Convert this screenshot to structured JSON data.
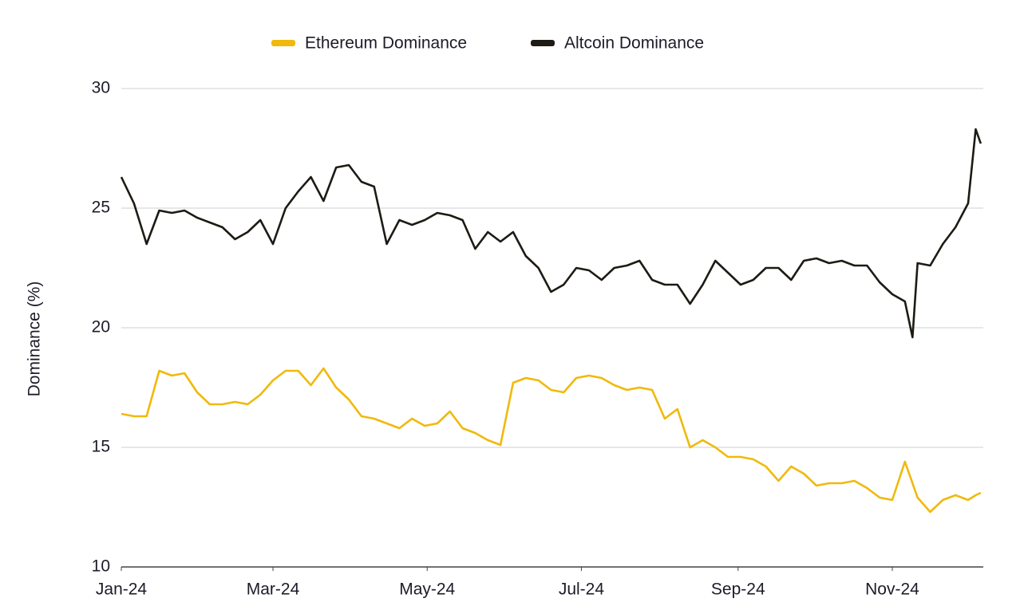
{
  "chart_data": {
    "type": "line",
    "y_label": "Dominance (%)",
    "x": [
      0,
      5,
      10,
      15,
      20,
      25,
      30,
      35,
      40,
      45,
      50,
      55,
      60,
      65,
      70,
      75,
      80,
      85,
      90,
      95,
      100,
      105,
      110,
      115,
      120,
      125,
      130,
      135,
      140,
      145,
      150,
      155,
      160,
      165,
      170,
      175,
      180,
      185,
      190,
      195,
      200,
      205,
      210,
      215,
      220,
      225,
      230,
      235,
      240,
      245,
      250,
      255,
      260,
      265,
      270,
      275,
      280,
      285,
      290,
      295,
      300,
      305,
      310,
      313,
      315,
      320,
      325,
      330,
      335,
      338,
      340
    ],
    "series": [
      {
        "name": "Ethereum Dominance",
        "color": "#f0b90b",
        "values": [
          16.4,
          16.3,
          16.3,
          18.2,
          18.0,
          18.1,
          17.3,
          16.8,
          16.8,
          16.9,
          16.8,
          17.2,
          17.8,
          18.2,
          18.2,
          17.6,
          18.3,
          17.5,
          17.0,
          16.3,
          16.2,
          16.0,
          15.8,
          16.2,
          15.9,
          16.0,
          16.5,
          15.8,
          15.6,
          15.3,
          15.1,
          17.7,
          17.9,
          17.8,
          17.4,
          17.3,
          17.9,
          18.0,
          17.9,
          17.6,
          17.4,
          17.5,
          17.4,
          16.2,
          16.6,
          15.0,
          15.3,
          15.0,
          14.6,
          14.6,
          14.5,
          14.2,
          13.6,
          14.2,
          13.9,
          13.4,
          13.5,
          13.5,
          13.6,
          13.3,
          12.9,
          12.8,
          14.4,
          13.5,
          12.9,
          12.3,
          12.8,
          13.0,
          12.8,
          13.0,
          13.1
        ]
      },
      {
        "name": "Altcoin Dominance",
        "color": "#1e1a14",
        "values": [
          26.3,
          25.2,
          23.5,
          24.9,
          24.8,
          24.9,
          24.6,
          24.4,
          24.2,
          23.7,
          24.0,
          24.5,
          23.5,
          25.0,
          25.7,
          26.3,
          25.3,
          26.7,
          26.8,
          26.1,
          25.9,
          23.5,
          24.5,
          24.3,
          24.5,
          24.8,
          24.7,
          24.5,
          23.3,
          24.0,
          23.6,
          24.0,
          23.0,
          22.5,
          21.5,
          21.8,
          22.5,
          22.4,
          22.0,
          22.5,
          22.6,
          22.8,
          22.0,
          21.8,
          21.8,
          21.0,
          21.8,
          22.8,
          22.3,
          21.8,
          22.0,
          22.5,
          22.5,
          22.0,
          22.8,
          22.9,
          22.7,
          22.8,
          22.6,
          22.6,
          21.9,
          21.4,
          21.1,
          19.6,
          22.7,
          22.6,
          23.5,
          24.2,
          25.2,
          28.3,
          27.7
        ]
      }
    ],
    "xlim": [
      0,
      341
    ],
    "xticks": [
      {
        "value": 0,
        "label": "Jan-24"
      },
      {
        "value": 60,
        "label": "Mar-24"
      },
      {
        "value": 121,
        "label": "May-24"
      },
      {
        "value": 182,
        "label": "Jul-24"
      },
      {
        "value": 244,
        "label": "Sep-24"
      },
      {
        "value": 305,
        "label": "Nov-24"
      }
    ],
    "ylim": [
      10,
      30
    ],
    "yticks": [
      10,
      15,
      20,
      25,
      30
    ],
    "grid": true,
    "legend": "top"
  }
}
